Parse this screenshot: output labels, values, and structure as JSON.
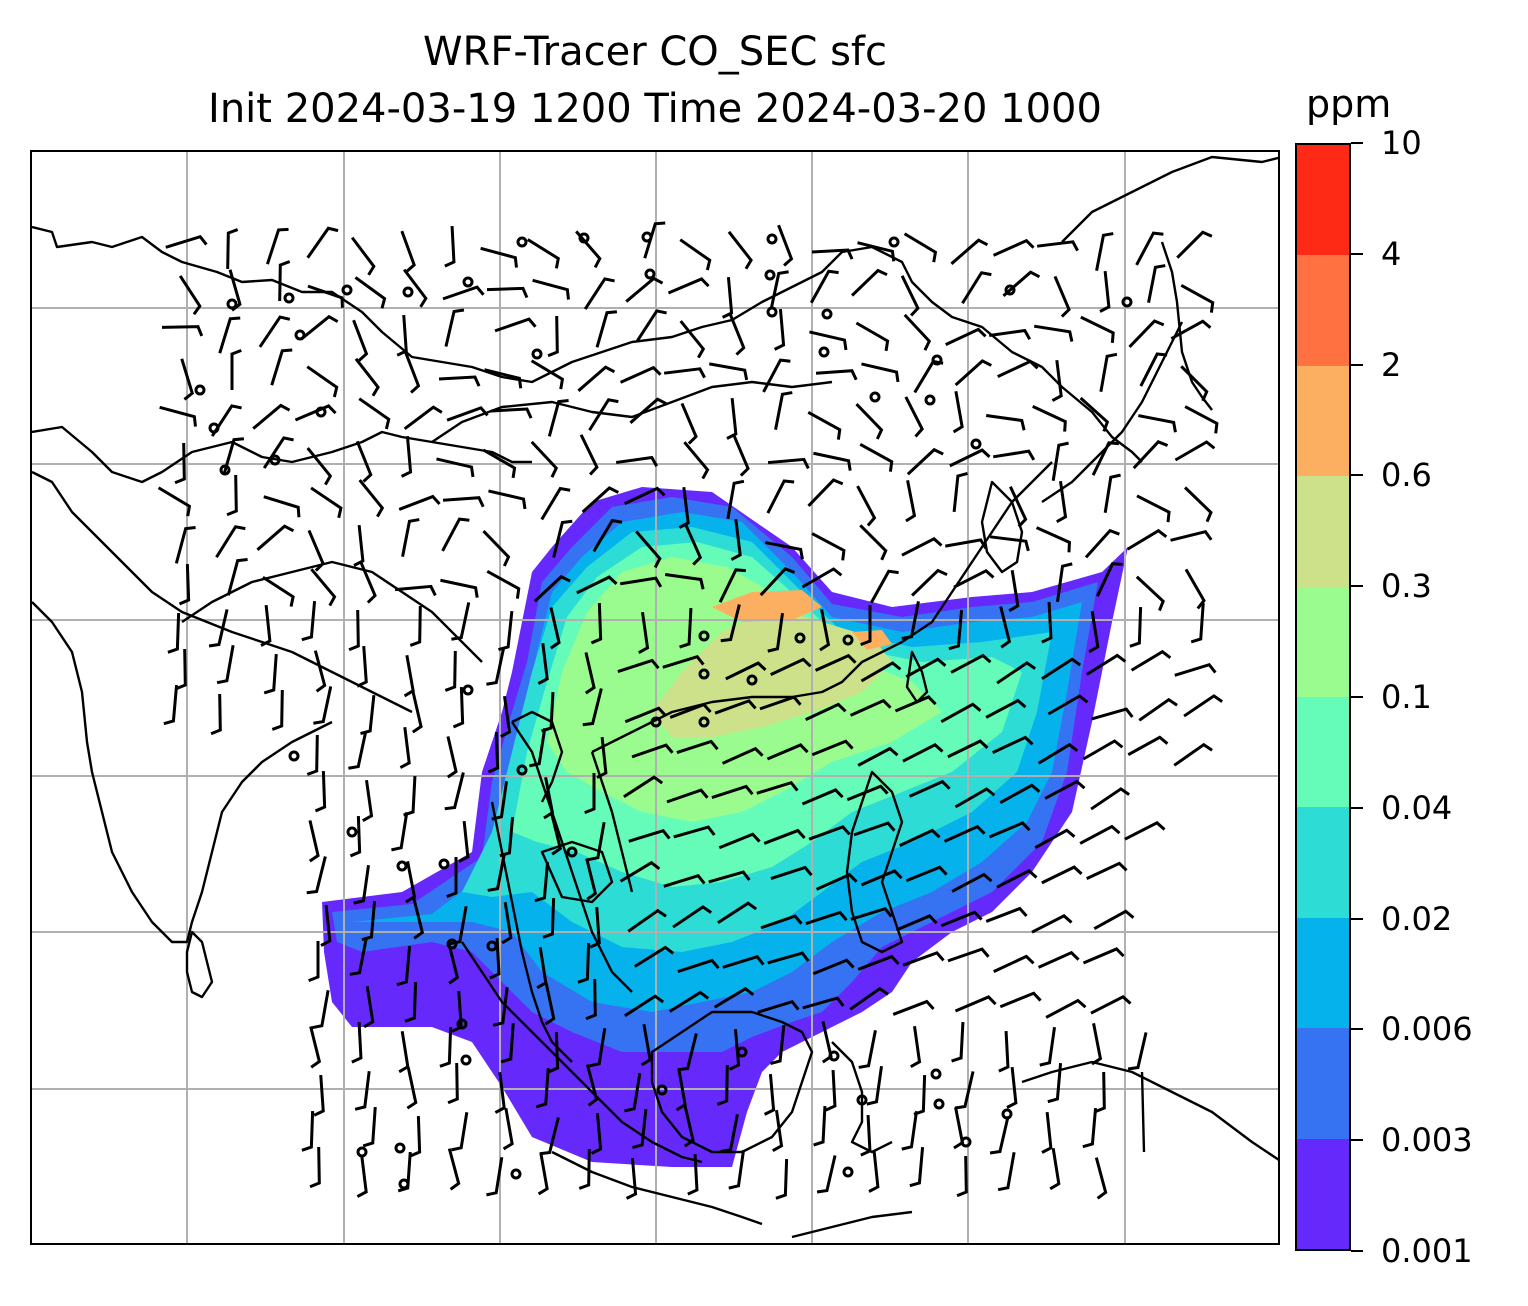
{
  "title": {
    "line1": "WRF-Tracer CO_SEC sfc",
    "line2": "Init 2024-03-19 1200 Time 2024-03-20 1000"
  },
  "colorbar": {
    "unit": "ppm",
    "levels": [
      "0.001",
      "0.003",
      "0.006",
      "0.02",
      "0.04",
      "0.1",
      "0.3",
      "0.6",
      "2",
      "4",
      "10"
    ],
    "colors": [
      "#6529fb",
      "#3673f3",
      "#05b2ec",
      "#2cdcd5",
      "#65fbb9",
      "#9afb8e",
      "#cde18a",
      "#fdaf61",
      "#ff7140",
      "#ff2a16"
    ]
  },
  "map": {
    "gridlines": true,
    "features": [
      "coastlines",
      "country-borders",
      "wind-barbs",
      "calm-circles",
      "tracer-concentration-fill"
    ]
  }
}
